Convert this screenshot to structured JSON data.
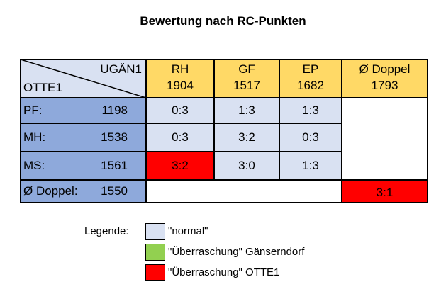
{
  "title": "Bewertung nach RC-Punkten",
  "corner": {
    "top": "UGÄN1",
    "bottom": "OTTE1"
  },
  "columns": [
    {
      "name": "RH",
      "value": "1904"
    },
    {
      "name": "GF",
      "value": "1517"
    },
    {
      "name": "EP",
      "value": "1682"
    },
    {
      "name": "Ø Doppel",
      "value": "1793"
    }
  ],
  "rows": [
    {
      "name": "PF:",
      "value": "1198",
      "cells": [
        "0:3",
        "1:3",
        "1:3"
      ]
    },
    {
      "name": "MH:",
      "value": "1538",
      "cells": [
        "0:3",
        "3:2",
        "0:3"
      ]
    },
    {
      "name": "MS:",
      "value": "1561",
      "cells": [
        "3:2",
        "3:0",
        "1:3"
      ]
    }
  ],
  "doppel_row": {
    "name": "Ø Doppel:",
    "value": "1550",
    "result": "3:1"
  },
  "legend": {
    "label": "Legende:",
    "items": [
      {
        "text": "\"normal\"",
        "color": "#d9e1f2"
      },
      {
        "text": "\"Überraschung\" Gänserndorf",
        "color": "#92d050"
      },
      {
        "text": "\"Überraschung\" OTTE1",
        "color": "#ff0000"
      }
    ]
  },
  "colors": {
    "header": "#ffd966",
    "normal": "#d9e1f2",
    "rowhead": "#8ea9db",
    "surprise_otte": "#ff0000",
    "surprise_gaenserndorf": "#92d050"
  }
}
